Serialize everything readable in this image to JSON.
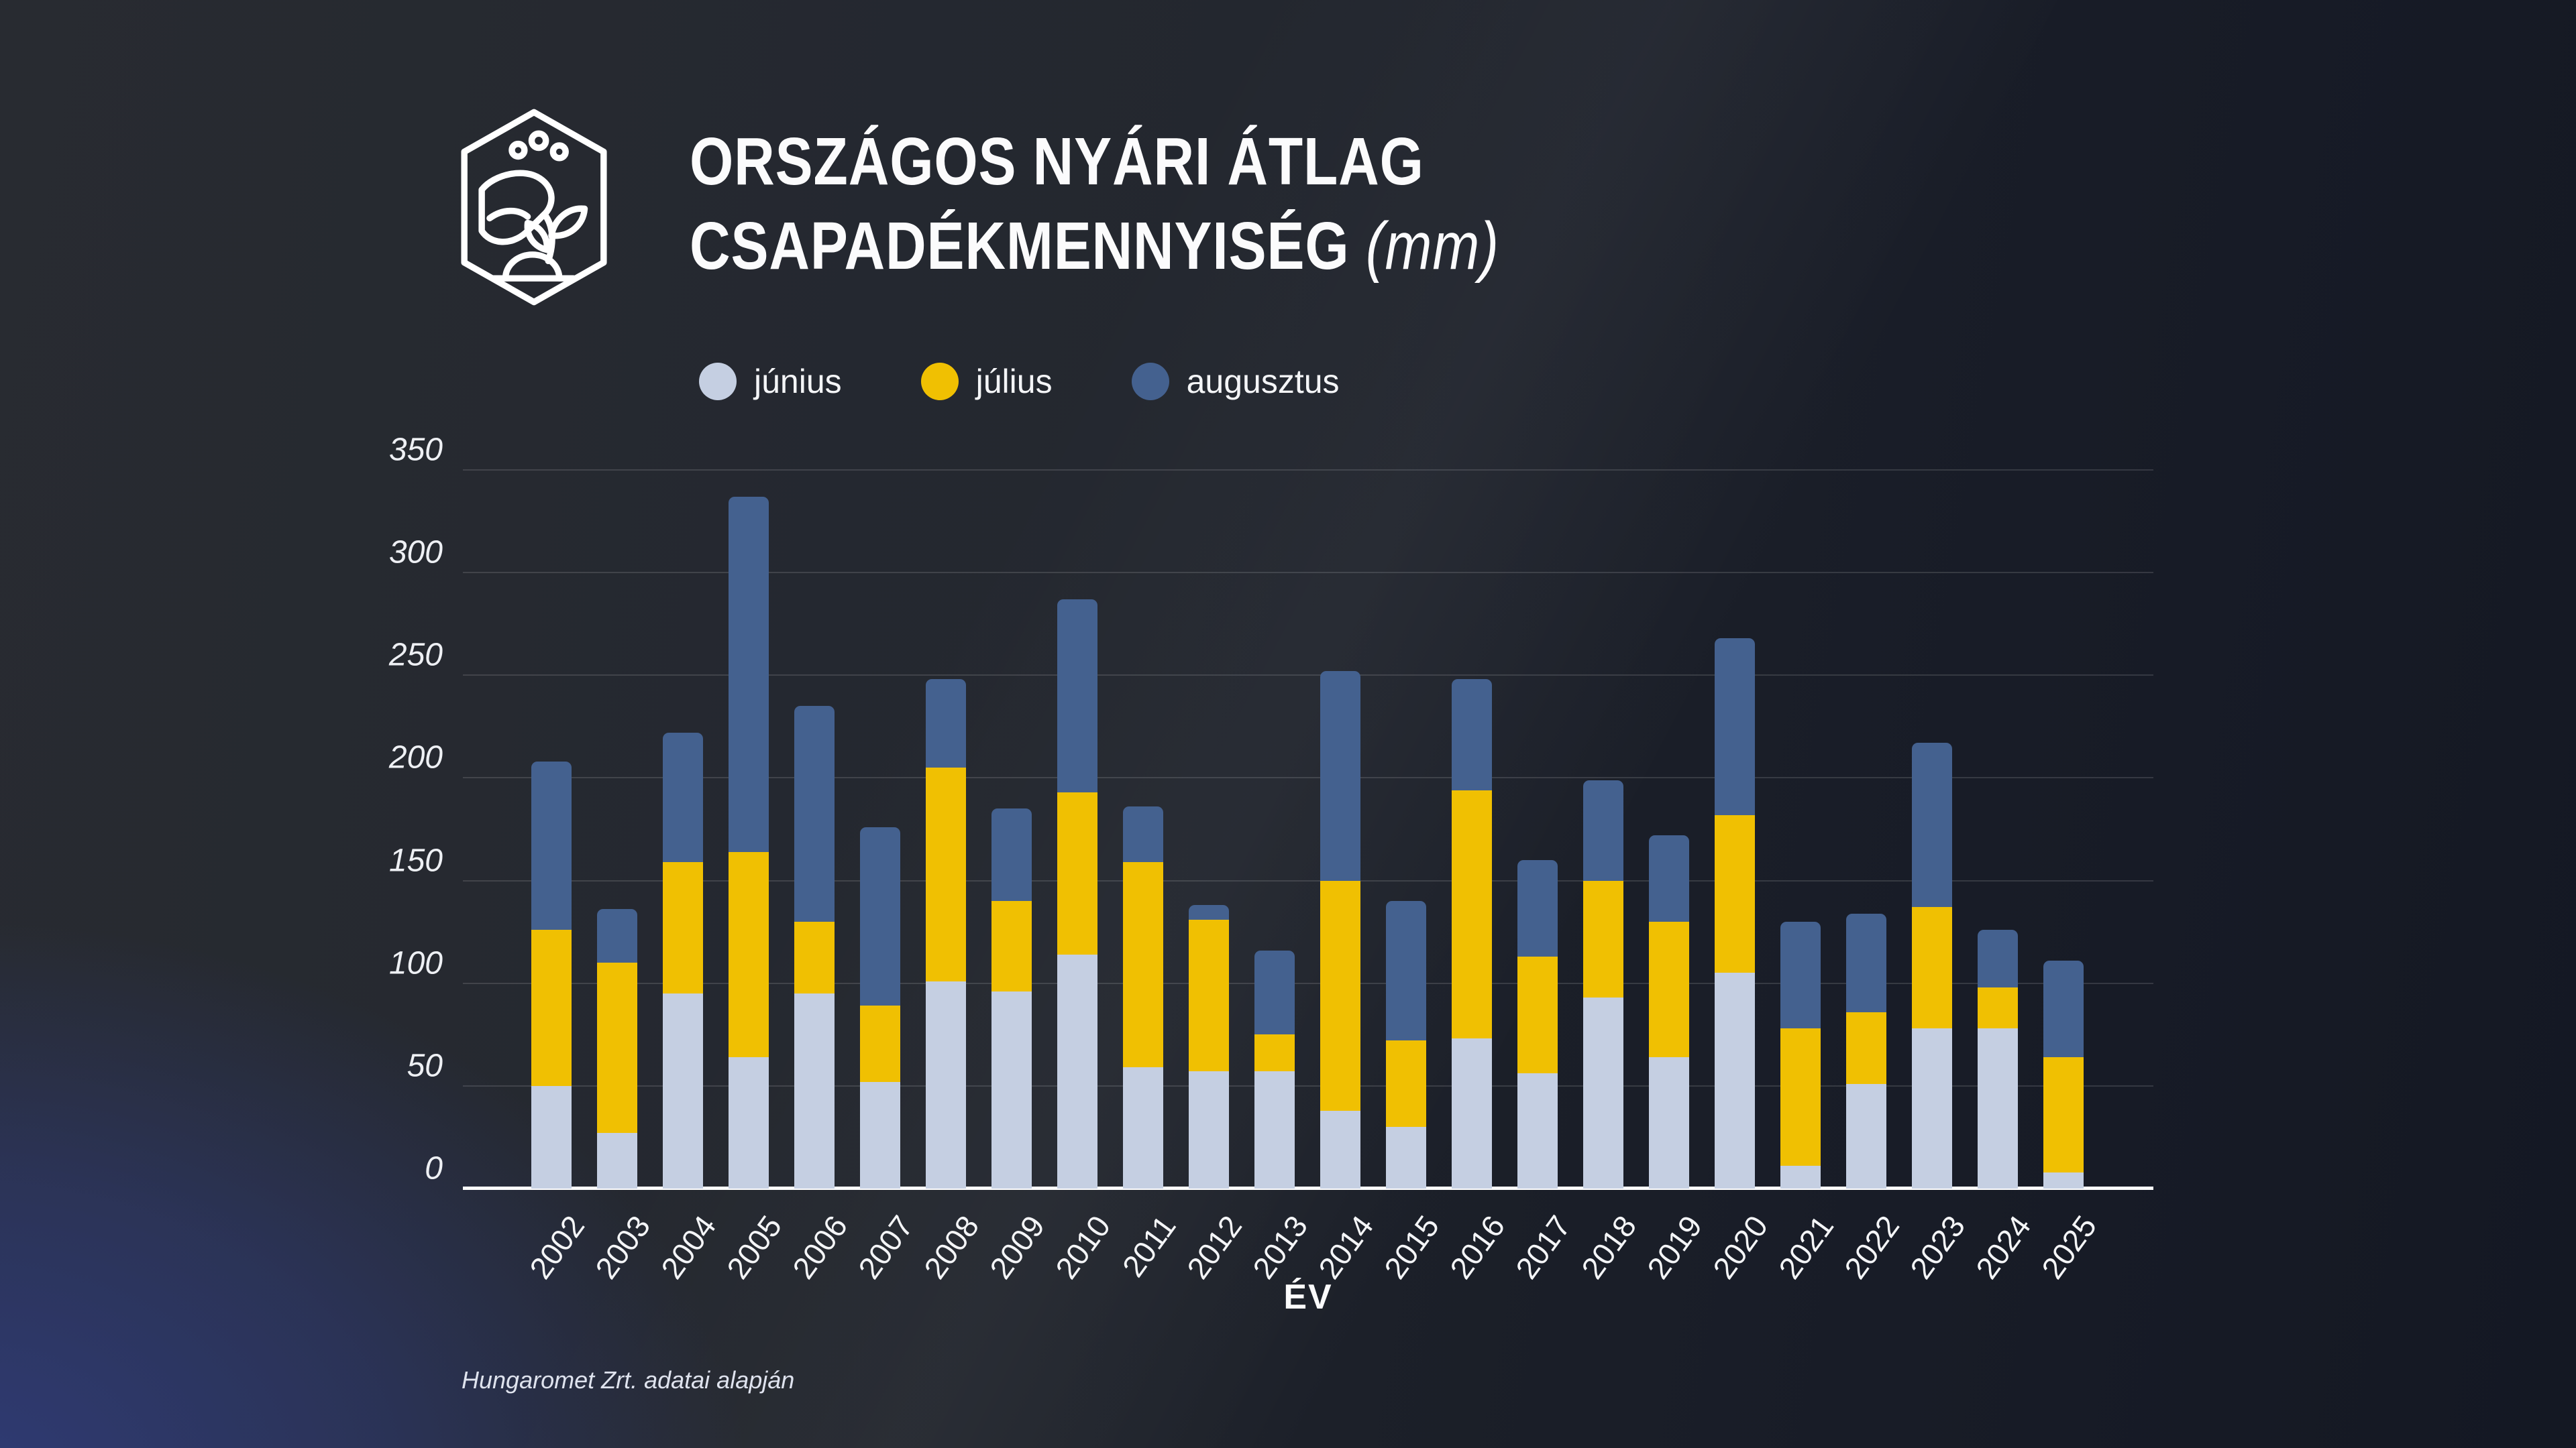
{
  "header": {
    "title_line1": "ORSZÁGOS NYÁRI ÁTLAG",
    "title_line2": "CSAPADÉKMENNYISÉG",
    "title_unit": "(mm)",
    "logo": "hand-sprout-hexagon"
  },
  "legend": [
    {
      "label": "június",
      "color": "#c5cfe2"
    },
    {
      "label": "július",
      "color": "#f0c002"
    },
    {
      "label": "augusztus",
      "color": "#44618f"
    }
  ],
  "chart_data": {
    "type": "bar",
    "stacked": true,
    "title": "Országos nyári átlag csapadékmennyiség (mm)",
    "xlabel": "ÉV",
    "ylabel": "",
    "ylim": [
      0,
      350
    ],
    "yticks": [
      0,
      50,
      100,
      150,
      200,
      250,
      300,
      350
    ],
    "grid": true,
    "legend_position": "top",
    "categories": [
      2002,
      2003,
      2004,
      2005,
      2006,
      2007,
      2008,
      2009,
      2010,
      2011,
      2012,
      2013,
      2014,
      2015,
      2016,
      2017,
      2018,
      2019,
      2020,
      2021,
      2022,
      2023,
      2024,
      2025
    ],
    "series": [
      {
        "name": "június",
        "color": "#c5cfe2",
        "values": [
          50,
          27,
          95,
          64,
          95,
          52,
          101,
          96,
          114,
          59,
          57,
          57,
          38,
          30,
          73,
          56,
          93,
          64,
          105,
          11,
          51,
          78,
          78,
          8
        ]
      },
      {
        "name": "július",
        "color": "#f0c002",
        "values": [
          76,
          83,
          64,
          100,
          35,
          37,
          104,
          44,
          79,
          100,
          74,
          18,
          112,
          42,
          121,
          57,
          57,
          66,
          77,
          67,
          35,
          59,
          20,
          56
        ]
      },
      {
        "name": "augusztus",
        "color": "#44618f",
        "values": [
          82,
          26,
          63,
          173,
          105,
          87,
          43,
          45,
          94,
          27,
          7,
          41,
          102,
          68,
          54,
          47,
          49,
          42,
          86,
          52,
          48,
          80,
          28,
          47
        ]
      }
    ]
  },
  "footer": {
    "source": "Hungaromet Zrt. adatai alapján"
  },
  "style": {
    "background_glow": "#2f3b76",
    "axis_color": "#ffffff",
    "grid_color": "rgba(255,255,255,0.13)"
  }
}
